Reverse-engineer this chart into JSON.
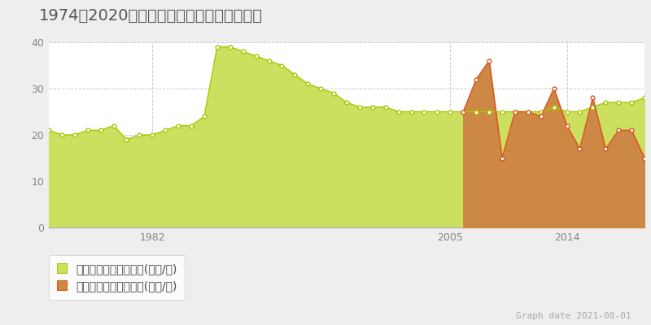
{
  "title": "1974～2020年　福山市木之庄町の地価推移",
  "graph_date": "Graph date 2021-08-01",
  "legend_label1": "地価公示　平均坪単価(万円/坪)",
  "legend_label2": "取引価格　平均坪単価(万円/坪)",
  "ylim": [
    0,
    40
  ],
  "yticks": [
    0,
    10,
    20,
    30,
    40
  ],
  "xlim": [
    1974,
    2020
  ],
  "bg_color": "#eeeeee",
  "plot_bg_color": "#ffffff",
  "grid_color": "#cccccc",
  "green_line_color": "#a8c800",
  "green_fill_color": "#cce060",
  "orange_line_color": "#dd5522",
  "orange_fill_color": "#cc8844",
  "marker_color": "#ffffff",
  "land_price_years": [
    1974,
    1975,
    1976,
    1977,
    1978,
    1979,
    1980,
    1981,
    1982,
    1983,
    1984,
    1985,
    1986,
    1987,
    1988,
    1989,
    1990,
    1991,
    1992,
    1993,
    1994,
    1995,
    1996,
    1997,
    1998,
    1999,
    2000,
    2001,
    2002,
    2003,
    2004,
    2005,
    2006,
    2007,
    2008,
    2009,
    2010,
    2011,
    2012,
    2013,
    2014,
    2015,
    2016,
    2017,
    2018,
    2019,
    2020
  ],
  "land_price_values": [
    21,
    20,
    20,
    21,
    21,
    22,
    19,
    20,
    20,
    21,
    22,
    22,
    24,
    39,
    39,
    38,
    37,
    36,
    35,
    33,
    31,
    30,
    29,
    27,
    26,
    26,
    26,
    25,
    25,
    25,
    25,
    25,
    25,
    25,
    25,
    25,
    25,
    25,
    25,
    26,
    25,
    25,
    26,
    27,
    27,
    27,
    28
  ],
  "transaction_years": [
    2006,
    2007,
    2008,
    2009,
    2010,
    2011,
    2012,
    2013,
    2014,
    2015,
    2016,
    2017,
    2018,
    2019,
    2020
  ],
  "transaction_values": [
    25,
    32,
    36,
    15,
    25,
    25,
    24,
    30,
    22,
    17,
    28,
    17,
    21,
    21,
    15
  ],
  "xtick_years": [
    1982,
    2005,
    2014
  ],
  "title_fontsize": 14,
  "tick_fontsize": 9,
  "legend_fontsize": 10,
  "graph_date_fontsize": 8
}
